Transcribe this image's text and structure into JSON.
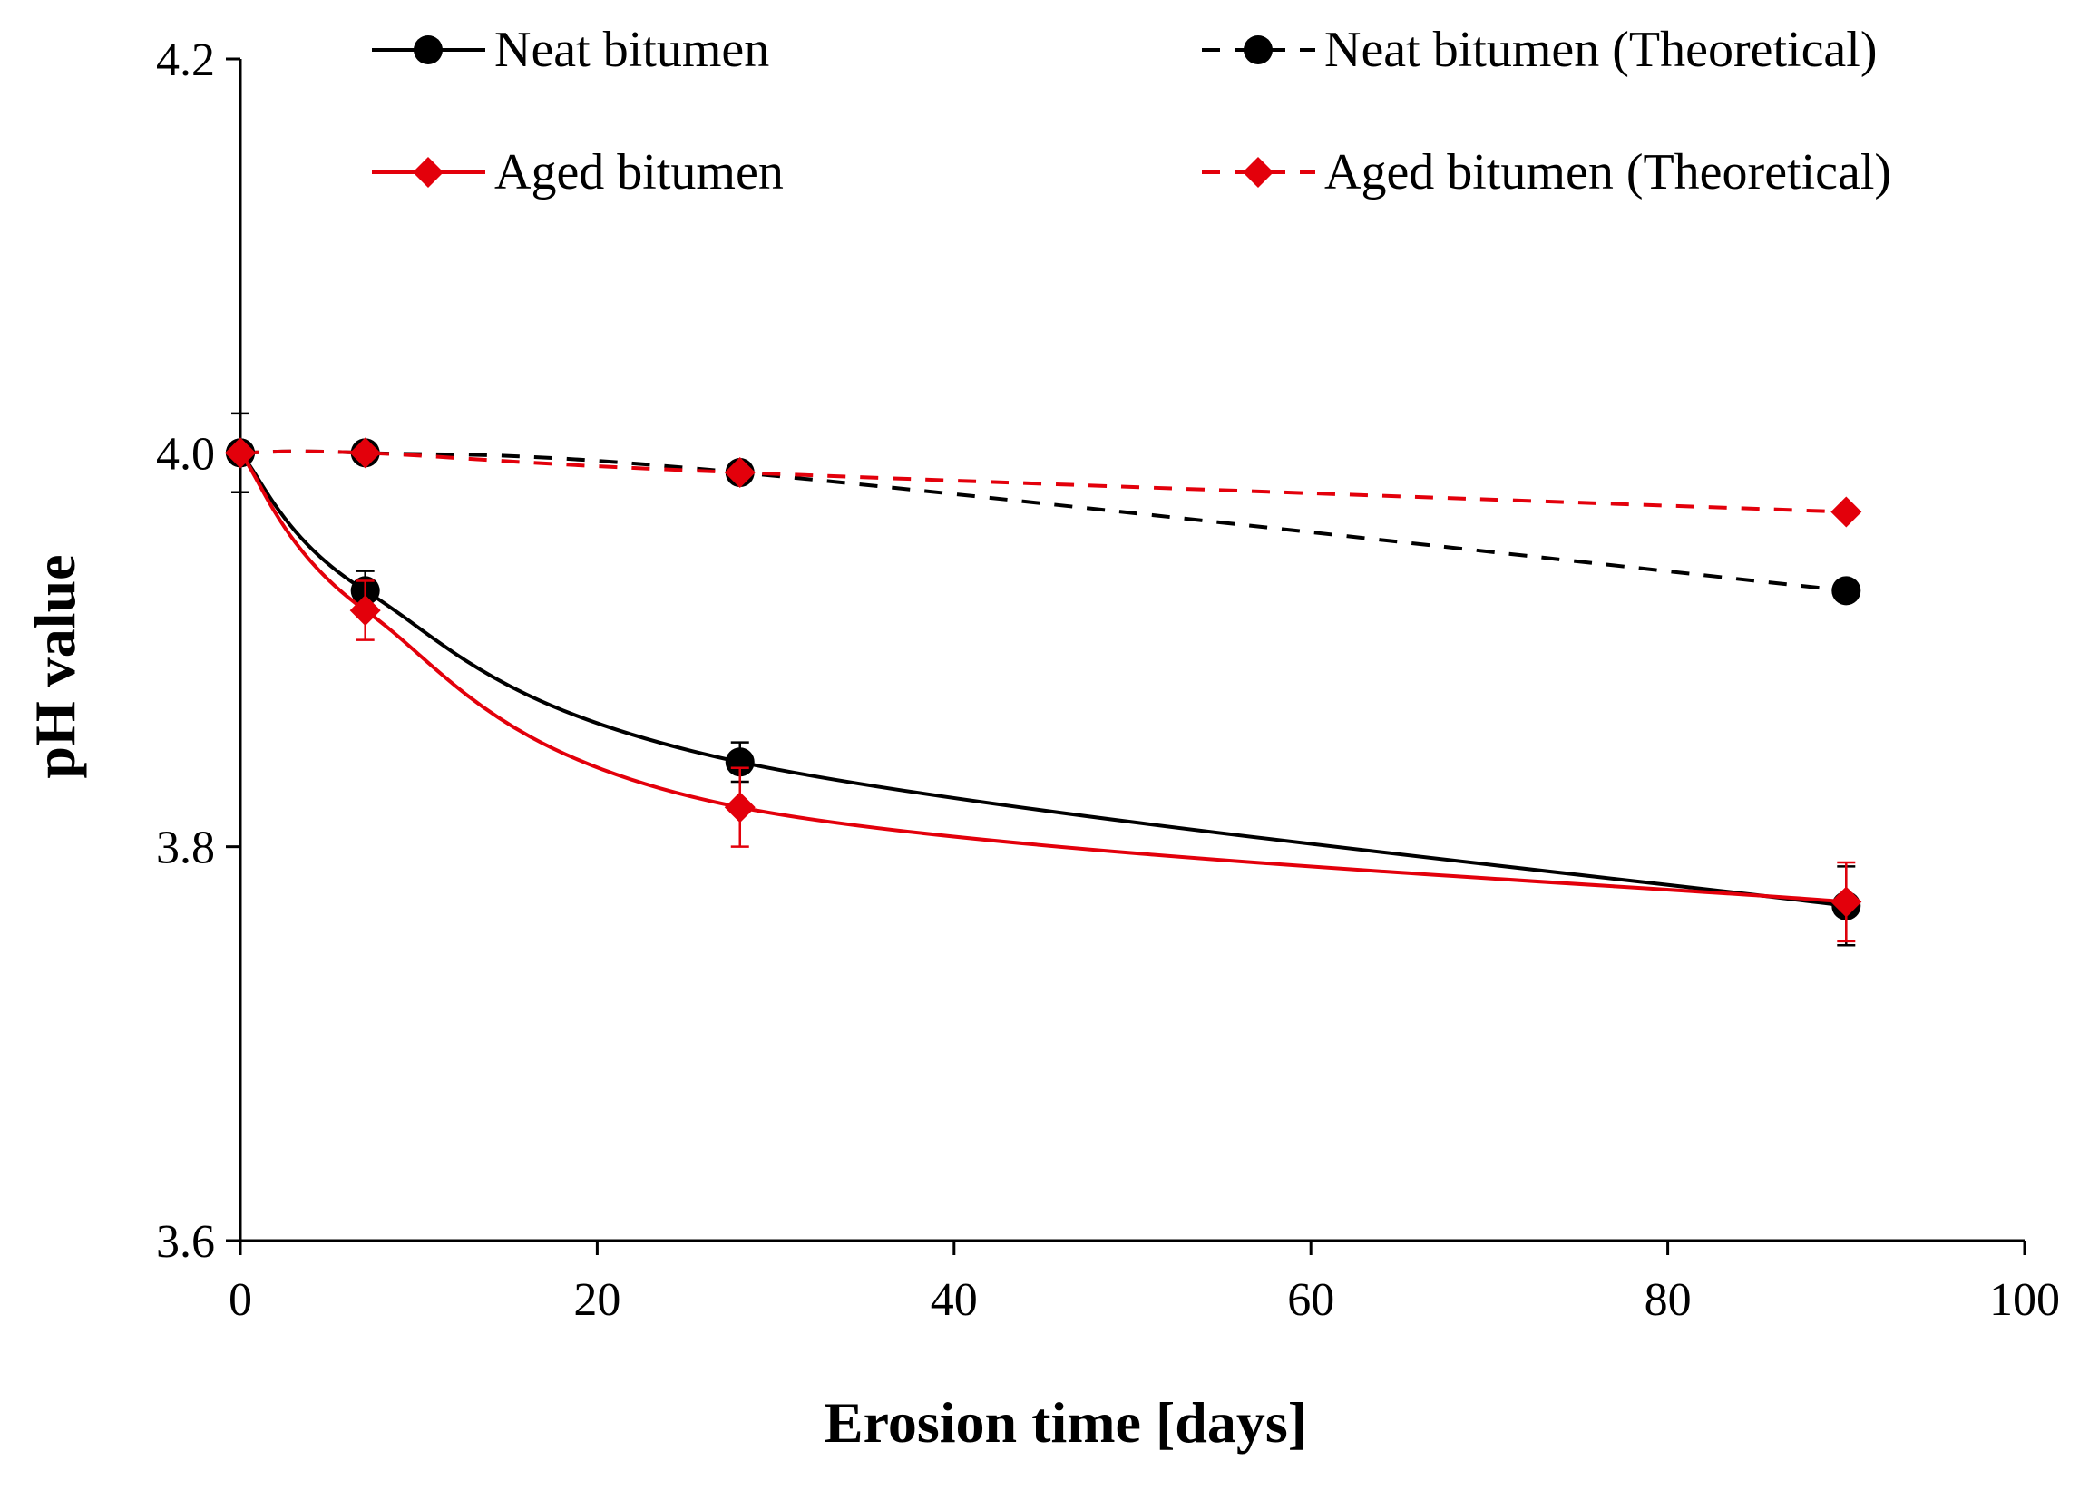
{
  "chart_data": {
    "type": "line",
    "title": "",
    "xlabel": "Erosion time [days]",
    "ylabel": "pH value",
    "xlim": [
      0,
      100
    ],
    "ylim": [
      3.6,
      4.2
    ],
    "x_ticks": [
      "0",
      "20",
      "40",
      "60",
      "80",
      "100"
    ],
    "y_ticks": [
      "3.6",
      "3.8",
      "4.0",
      "4.2"
    ],
    "grid": false,
    "legend_position": "top",
    "x": [
      0,
      7,
      28,
      90
    ],
    "series": [
      {
        "name": "Neat bitumen",
        "values": [
          4.0,
          3.93,
          3.843,
          3.77
        ],
        "errors": [
          0.02,
          0.01,
          0.01,
          0.02
        ],
        "color": "#000000",
        "line": "solid",
        "marker": "circle"
      },
      {
        "name": "Aged bitumen",
        "values": [
          4.0,
          3.92,
          3.82,
          3.772
        ],
        "errors": [
          0.0,
          0.015,
          0.02,
          0.02
        ],
        "color": "#e3000b",
        "line": "solid",
        "marker": "diamond"
      },
      {
        "name": "Neat bitumen (Theoretical)",
        "values": [
          4.0,
          4.0,
          3.99,
          3.93
        ],
        "color": "#000000",
        "line": "dashed",
        "marker": "circle"
      },
      {
        "name": "Aged bitumen (Theoretical)",
        "values": [
          4.0,
          4.0,
          3.99,
          3.97
        ],
        "color": "#e3000b",
        "line": "dashed",
        "marker": "diamond"
      }
    ]
  }
}
